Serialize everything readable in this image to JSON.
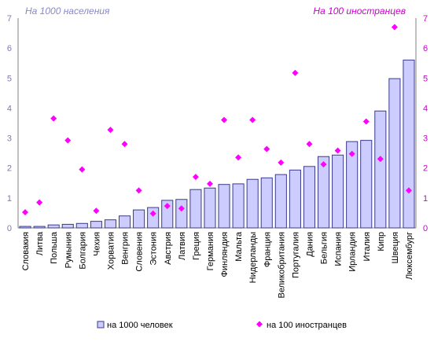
{
  "chart_data": {
    "type": "bar",
    "title": "",
    "left_axis_title": "На 1000 населения",
    "right_axis_title": "На 100 иностранцев",
    "ylim": [
      0,
      7
    ],
    "y2lim": [
      0,
      7
    ],
    "yticks": [
      "0",
      "1",
      "2",
      "3",
      "4",
      "5",
      "6",
      "7"
    ],
    "y2ticks": [
      "0",
      "1",
      "2",
      "3",
      "4",
      "5",
      "6",
      "7"
    ],
    "grid": false,
    "legend_position": "bottom",
    "categories": [
      "Словакия",
      "Литва",
      "Польша",
      "Румыния",
      "Болгария",
      "Чехия",
      "Хорватия",
      "Венгрия",
      "Словения",
      "Эстония",
      "Австрия",
      "Латвия",
      "Греция",
      "Германия",
      "Финляндия",
      "Мальта",
      "Нидерланды",
      "Франция",
      "Великобритания",
      "Португалия",
      "Дания",
      "Бельгия",
      "Испания",
      "Ирландия",
      "Италия",
      "Кипр",
      "Швеция",
      "Люксембург"
    ],
    "series": [
      {
        "name": "на 1000 человек",
        "kind": "bar",
        "axis": "left",
        "color": "#ccccff",
        "stroke": "#3a3a8c",
        "values": [
          0.05,
          0.05,
          0.1,
          0.12,
          0.15,
          0.22,
          0.27,
          0.4,
          0.6,
          0.68,
          0.92,
          0.95,
          1.28,
          1.33,
          1.45,
          1.47,
          1.62,
          1.67,
          1.78,
          1.93,
          2.05,
          2.38,
          2.43,
          2.88,
          2.92,
          3.9,
          4.98,
          5.6
        ]
      },
      {
        "name": "на 100 иностранцев",
        "kind": "scatter",
        "axis": "right",
        "color": "#ff00ff",
        "values": [
          0.52,
          0.85,
          3.65,
          2.92,
          1.95,
          0.57,
          3.27,
          2.8,
          1.25,
          0.48,
          0.73,
          0.65,
          1.7,
          1.47,
          3.6,
          2.35,
          3.6,
          2.63,
          2.18,
          5.17,
          2.8,
          2.12,
          2.58,
          2.47,
          3.55,
          2.3,
          6.7,
          1.25
        ]
      }
    ]
  }
}
